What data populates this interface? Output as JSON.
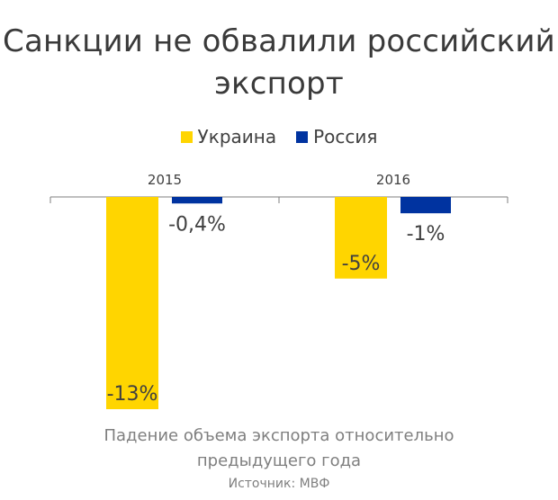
{
  "title_lines": [
    "Санкции не обвалили российский",
    "экспорт"
  ],
  "legend": [
    {
      "label": "Украина",
      "color": "#FFD500"
    },
    {
      "label": "Россия",
      "color": "#0033A0"
    }
  ],
  "caption_lines": [
    "Падение объема экспорта относительно",
    "предыдущего года"
  ],
  "source": "Источник: МВФ",
  "chart_data": {
    "type": "bar",
    "title": "Санкции не обвалили российский экспорт",
    "categories": [
      "2015",
      "2016"
    ],
    "series": [
      {
        "name": "Украина",
        "color": "#FFD500",
        "values": [
          -13,
          -5
        ],
        "labels": [
          "-13%",
          "-5%"
        ]
      },
      {
        "name": "Россия",
        "color": "#0033A0",
        "values": [
          -0.4,
          -1
        ],
        "labels": [
          "-0,4%",
          "-1%"
        ]
      }
    ],
    "xlabel": "Падение объема экспорта относительно предыдущего года",
    "ylabel": "",
    "ylim": [
      -13,
      0
    ],
    "grid": false,
    "legend_position": "top"
  }
}
